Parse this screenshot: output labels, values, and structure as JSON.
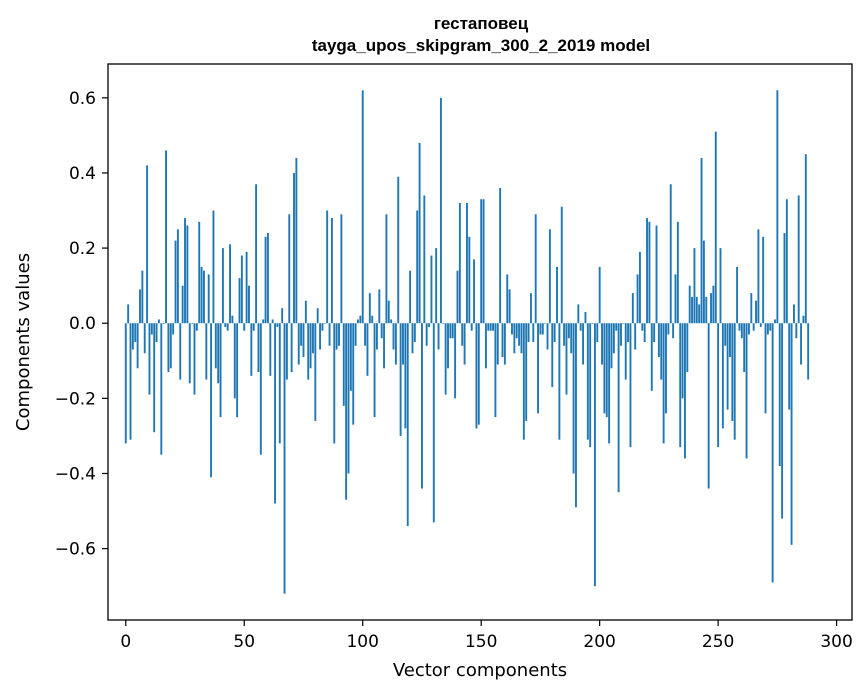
{
  "chart_data": {
    "type": "bar",
    "title": "гестаповец",
    "subtitle": "tayga_upos_skipgram_300_2_2019 model",
    "xlabel": "Vector components",
    "ylabel": "Components values",
    "xlim": [
      -7.5,
      306.5
    ],
    "ylim": [
      -0.79,
      0.69
    ],
    "x_ticks": [
      0,
      50,
      100,
      150,
      200,
      250,
      300
    ],
    "y_ticks": [
      -0.6,
      -0.4,
      -0.2,
      0.0,
      0.2,
      0.4,
      0.6
    ],
    "y_tick_labels": [
      "−0.6",
      "−0.4",
      "−0.2",
      "0.0",
      "0.2",
      "0.4",
      "0.6"
    ],
    "bar_color": "#1f77b4",
    "grid": false,
    "values": [
      -0.32,
      0.05,
      -0.31,
      -0.07,
      -0.05,
      -0.12,
      0.09,
      0.14,
      -0.08,
      0.42,
      -0.19,
      -0.03,
      -0.29,
      -0.05,
      0.01,
      -0.35,
      0.0,
      0.46,
      -0.13,
      -0.12,
      -0.03,
      0.22,
      0.25,
      -0.15,
      0.1,
      0.28,
      0.26,
      -0.16,
      0.0,
      -0.19,
      -0.02,
      0.27,
      0.15,
      0.14,
      -0.15,
      0.13,
      -0.41,
      0.3,
      -0.12,
      -0.16,
      -0.25,
      0.2,
      -0.01,
      -0.02,
      0.21,
      0.02,
      -0.2,
      -0.25,
      0.12,
      0.18,
      -0.02,
      0.19,
      0.1,
      -0.14,
      -0.02,
      0.37,
      -0.13,
      -0.35,
      0.01,
      0.23,
      0.24,
      -0.14,
      0.01,
      -0.48,
      -0.01,
      -0.32,
      0.04,
      -0.72,
      -0.15,
      0.29,
      -0.13,
      0.4,
      0.44,
      -0.11,
      -0.06,
      -0.09,
      0.06,
      -0.15,
      -0.12,
      -0.08,
      -0.26,
      0.04,
      -0.07,
      -0.02,
      0.0,
      0.3,
      -0.06,
      0.28,
      -0.32,
      -0.07,
      -0.06,
      0.29,
      -0.22,
      -0.47,
      -0.4,
      -0.18,
      -0.27,
      -0.06,
      0.01,
      0.02,
      0.62,
      -0.06,
      -0.14,
      0.08,
      0.02,
      -0.25,
      -0.07,
      0.09,
      -0.04,
      -0.12,
      0.29,
      0.06,
      0.01,
      -0.07,
      -0.11,
      0.39,
      -0.3,
      -0.11,
      -0.28,
      -0.54,
      0.14,
      -0.08,
      -0.05,
      0.3,
      0.48,
      -0.44,
      0.34,
      -0.06,
      -0.01,
      0.18,
      -0.53,
      0.2,
      -0.07,
      0.6,
      0.0,
      -0.19,
      -0.12,
      -0.04,
      -0.04,
      -0.2,
      0.14,
      0.32,
      -0.06,
      -0.11,
      0.32,
      0.23,
      -0.02,
      0.17,
      -0.28,
      -0.27,
      0.33,
      0.33,
      -0.12,
      -0.02,
      -0.02,
      -0.02,
      -0.25,
      -0.11,
      0.36,
      -0.09,
      -0.11,
      0.13,
      0.09,
      -0.03,
      -0.08,
      -0.04,
      -0.06,
      -0.08,
      -0.31,
      -0.26,
      -0.05,
      0.08,
      -0.05,
      0.29,
      -0.24,
      -0.03,
      -0.03,
      0.0,
      -0.07,
      0.25,
      -0.17,
      -0.05,
      0.15,
      -0.31,
      0.31,
      -0.06,
      -0.19,
      -0.04,
      -0.08,
      -0.4,
      -0.49,
      0.05,
      -0.02,
      -0.11,
      0.03,
      -0.31,
      -0.33,
      0.0,
      -0.7,
      -0.05,
      0.15,
      -0.11,
      -0.24,
      -0.25,
      -0.32,
      -0.12,
      -0.08,
      -0.02,
      -0.45,
      -0.06,
      0.0,
      -0.15,
      -0.05,
      -0.33,
      0.08,
      -0.07,
      0.13,
      0.19,
      -0.02,
      -0.05,
      0.28,
      0.27,
      -0.18,
      -0.05,
      0.26,
      -0.09,
      -0.15,
      -0.32,
      -0.24,
      -0.03,
      0.37,
      -0.04,
      0.13,
      0.27,
      -0.33,
      -0.2,
      -0.36,
      -0.13,
      0.1,
      0.07,
      0.2,
      0.07,
      0.05,
      0.44,
      0.22,
      0.07,
      -0.44,
      0.08,
      0.1,
      0.51,
      -0.33,
      0.2,
      -0.28,
      -0.06,
      -0.23,
      -0.09,
      -0.26,
      -0.31,
      0.15,
      -0.02,
      -0.04,
      -0.13,
      -0.36,
      -0.03,
      0.08,
      -0.02,
      0.06,
      0.25,
      -0.01,
      0.23,
      -0.24,
      -0.03,
      -0.02,
      -0.69,
      0.01,
      0.62,
      -0.38,
      -0.52,
      0.24,
      0.33,
      -0.23,
      -0.59,
      0.05,
      -0.04,
      0.34,
      -0.11,
      0.02,
      0.45,
      -0.15
    ]
  }
}
